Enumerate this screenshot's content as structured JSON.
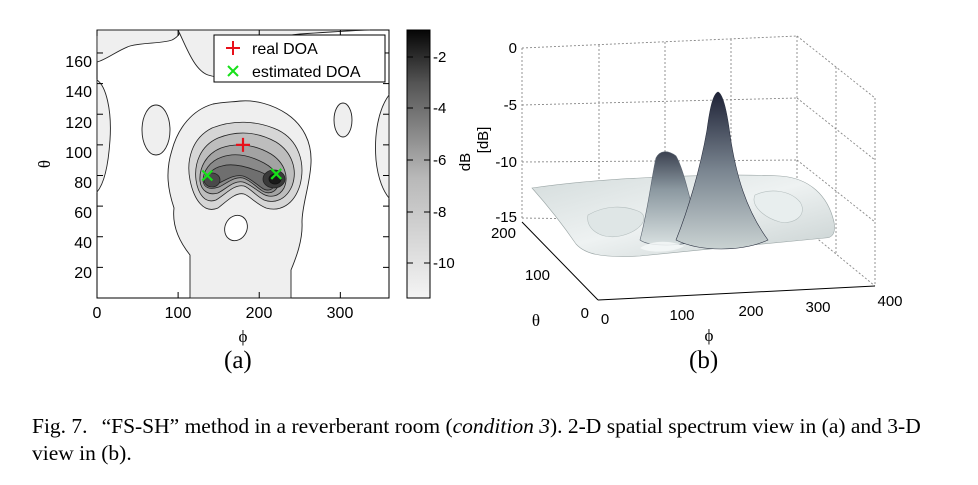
{
  "figure": {
    "panel_a": {
      "sublabel": "(a)",
      "xlabel": "ϕ",
      "ylabel": "θ",
      "x_ticks": [
        "0",
        "100",
        "200",
        "300"
      ],
      "y_ticks": [
        "20",
        "40",
        "60",
        "80",
        "100",
        "120",
        "140",
        "160"
      ],
      "legend": {
        "real": "real DOA",
        "estimated": "estimated DOA"
      },
      "colorbar": {
        "label": "dB",
        "ticks": [
          "-2",
          "-4",
          "-6",
          "-8",
          "-10"
        ]
      },
      "markers": {
        "real_doa": [
          {
            "phi": 180,
            "theta": 100
          }
        ],
        "estimated_doa": [
          {
            "phi": 136,
            "theta": 80
          },
          {
            "phi": 221,
            "theta": 81
          }
        ]
      },
      "colors": {
        "real": "#e8101a",
        "estimated": "#17e01a"
      }
    },
    "panel_b": {
      "sublabel": "(b)",
      "zlabel": "[dB]",
      "xlabel": "ϕ",
      "ylabel": "θ",
      "z_ticks": [
        "0",
        "-5",
        "-10",
        "-15"
      ],
      "x_ticks": [
        "0",
        "100",
        "200",
        "300",
        "400"
      ],
      "y_ticks": [
        "0",
        "100",
        "200"
      ]
    },
    "caption": {
      "lead": "Fig. 7.",
      "part1": "“FS-SH” method in a reverberant room (",
      "italic": "condition 3",
      "part2": "). 2-D spatial spectrum view in (a) and 3-D view in (b)."
    }
  }
}
